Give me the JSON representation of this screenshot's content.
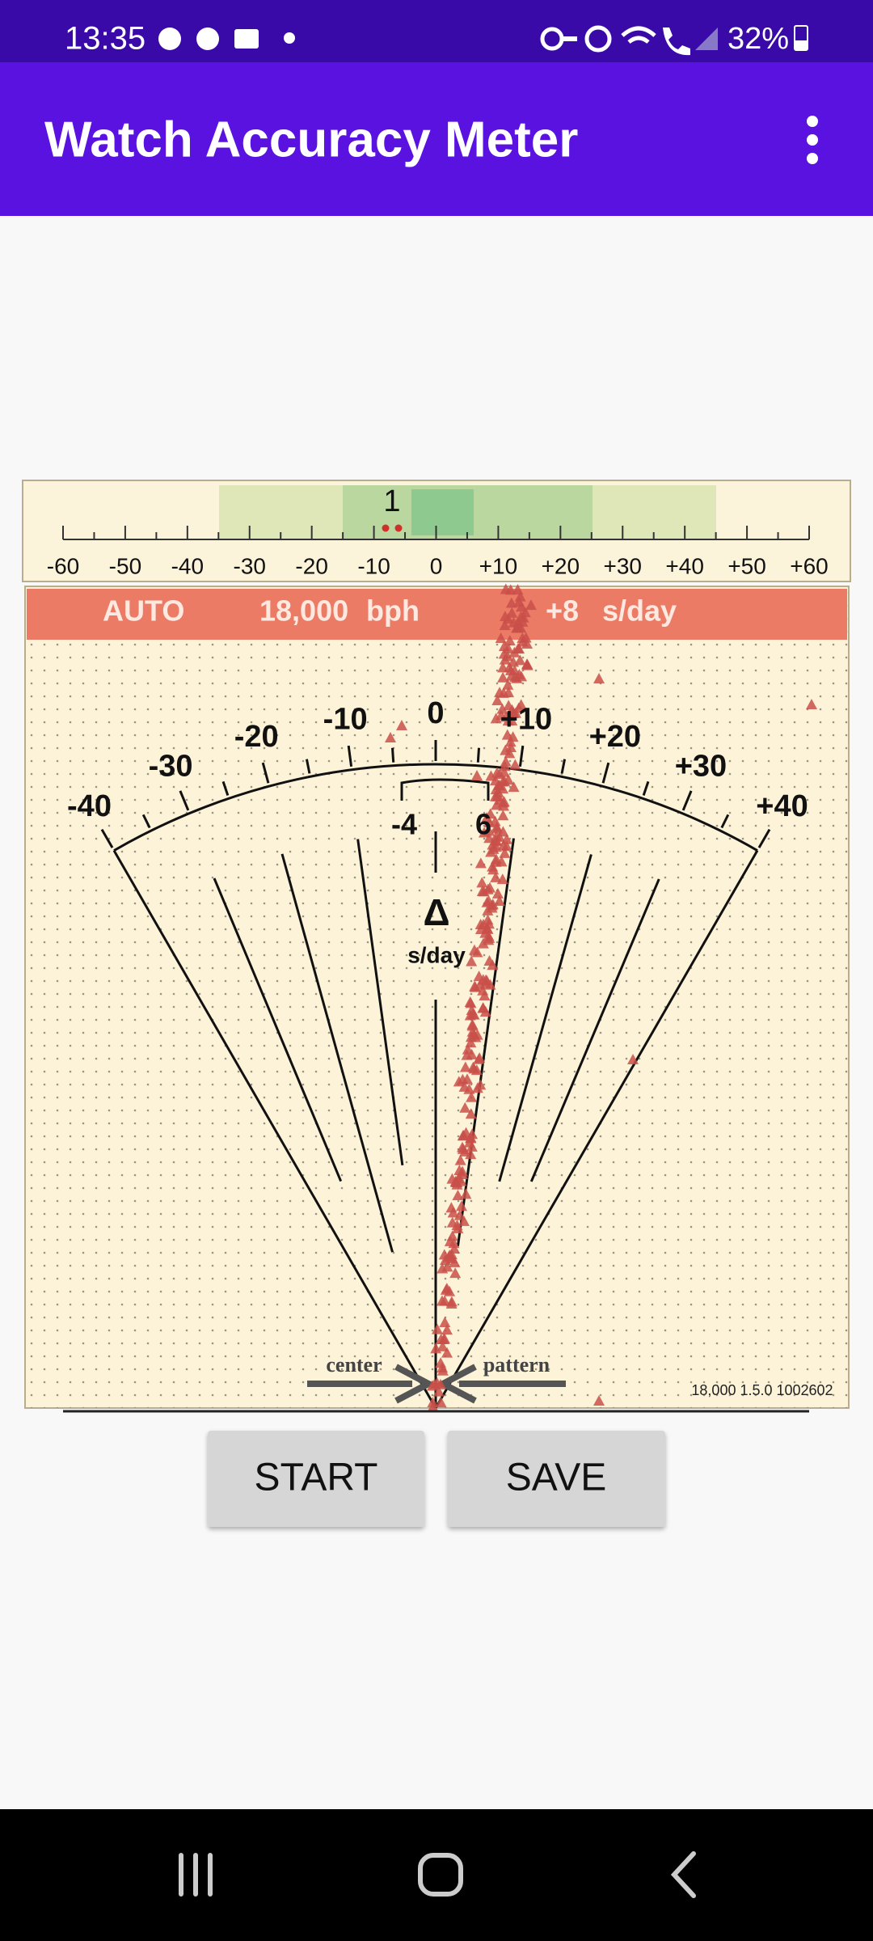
{
  "status_bar": {
    "time": "13:35",
    "battery": "32%"
  },
  "app_bar": {
    "title": "Watch Accuracy Meter"
  },
  "top_scale": {
    "labels": [
      "-60",
      "-50",
      "-40",
      "-30",
      "-20",
      "-10",
      "0",
      "+10",
      "+20",
      "+30",
      "+40",
      "+50",
      "+60"
    ],
    "indicator": "1"
  },
  "meter": {
    "banner": {
      "mode": "AUTO",
      "rate": "18,000",
      "rate_unit": "bph",
      "deviation": "+8",
      "deviation_unit": "s/day"
    },
    "dial_labels": [
      "-40",
      "-30",
      "-20",
      "-10",
      "0",
      "+10",
      "+20",
      "+30",
      "+40"
    ],
    "range_low": "-4",
    "range_high": "6",
    "delta_symbol": "Δ",
    "delta_unit": "s/day",
    "center_label": "center",
    "pattern_label": "pattern",
    "version": "18,000 1.5.0 1002602"
  },
  "buttons": [
    "START",
    "SAVE"
  ]
}
